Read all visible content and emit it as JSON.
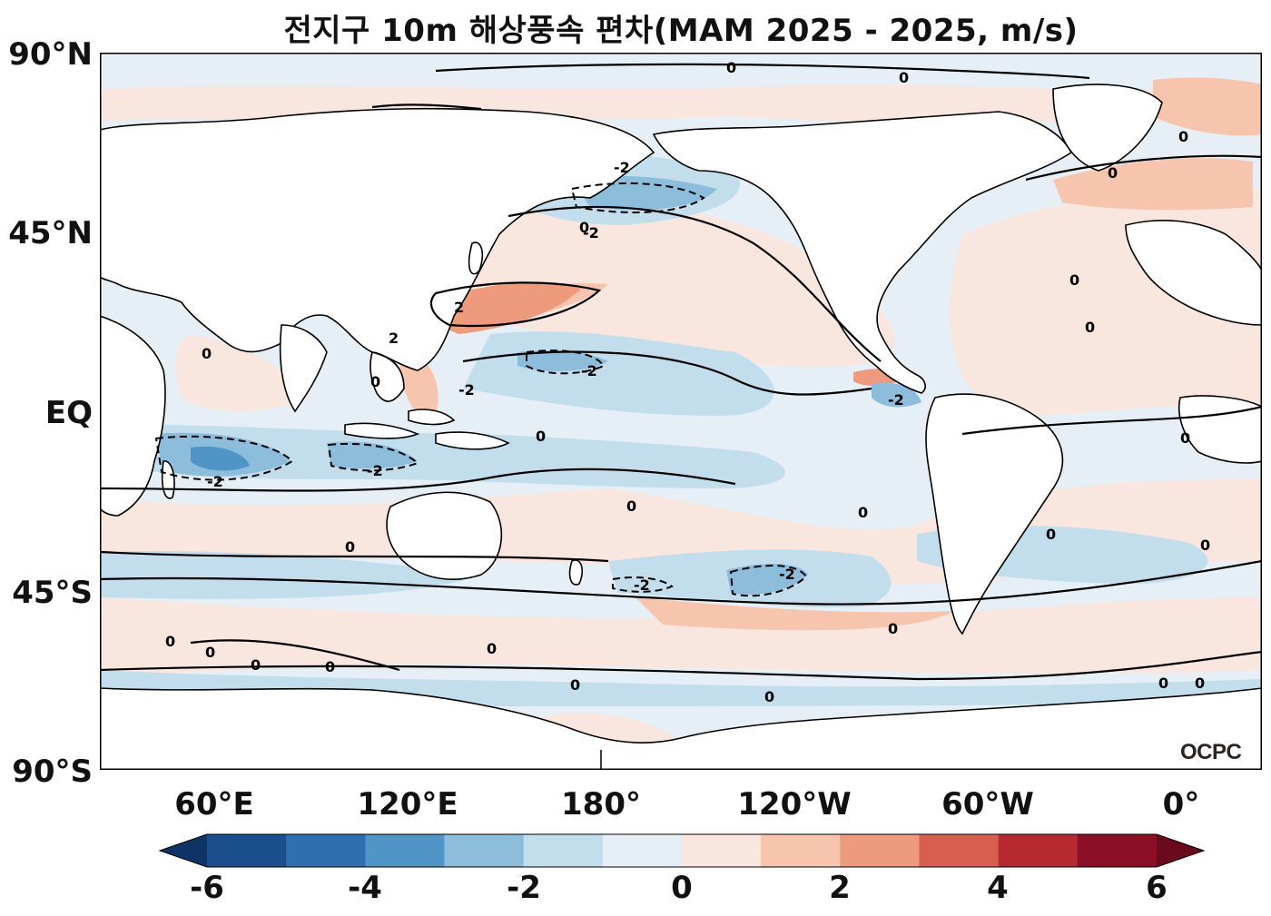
{
  "title": "전지구 10m 해상풍속 편차(MAM 2025 - 2025, m/s)",
  "logo": "OCPC",
  "axes": {
    "lat_labels": [
      "90°N",
      "45°N",
      "EQ",
      "45°S",
      "90°S"
    ],
    "lon_labels": [
      "60°E",
      "120°E",
      "180°",
      "120°W",
      "60°W",
      "0°"
    ]
  },
  "contour_labels": {
    "zero": "0",
    "neg": "-2",
    "pos": "2"
  },
  "colorbar": {
    "tick_labels": [
      "-6",
      "-4",
      "-2",
      "0",
      "2",
      "4",
      "6"
    ],
    "levels": [
      -6,
      -5,
      -4,
      -3,
      -2,
      -1,
      0,
      1,
      2,
      3,
      4,
      5,
      6
    ],
    "colors": [
      "#1a4e8c",
      "#2f6fb0",
      "#4f95c6",
      "#8cbedc",
      "#c2ddec",
      "#e6eff5",
      "#f9e6df",
      "#f7c4ad",
      "#ee9a7c",
      "#d85f4f",
      "#b82a32",
      "#8a0f25"
    ],
    "extend": "both"
  },
  "colors": {
    "land": "#ffffff",
    "coast": "#000000"
  }
}
